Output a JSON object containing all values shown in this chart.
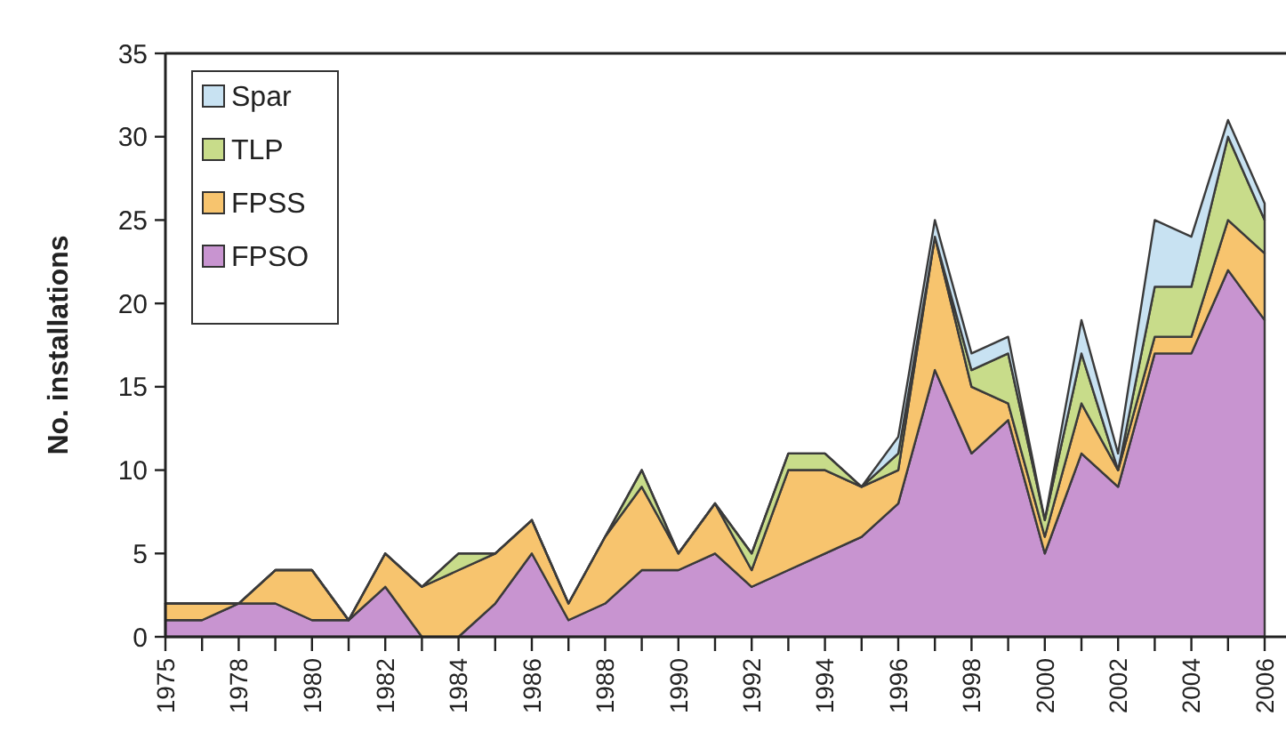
{
  "chart_data": {
    "type": "area",
    "stacked": true,
    "ylabel": "No. installations",
    "categories": [
      "1975",
      null,
      "1978",
      null,
      "1980",
      null,
      "1982",
      null,
      "1984",
      null,
      "1986",
      null,
      "1988",
      null,
      "1990",
      null,
      "1992",
      null,
      "1994",
      null,
      "1996",
      null,
      "1998",
      null,
      "2000",
      null,
      "2002",
      null,
      "2004",
      null,
      "2006"
    ],
    "series": [
      {
        "name": "FPSO",
        "color": "#c894d0",
        "values": [
          1,
          1,
          2,
          2,
          1,
          1,
          3,
          0,
          0,
          2,
          5,
          1,
          2,
          4,
          4,
          5,
          3,
          4,
          5,
          6,
          8,
          16,
          11,
          13,
          5,
          11,
          9,
          17,
          17,
          22,
          19
        ]
      },
      {
        "name": "FPSS",
        "color": "#f7c46e",
        "values": [
          1,
          1,
          0,
          2,
          3,
          0,
          2,
          3,
          4,
          3,
          2,
          1,
          4,
          5,
          1,
          3,
          1,
          6,
          5,
          3,
          2,
          8,
          4,
          1,
          1,
          3,
          1,
          1,
          1,
          3,
          4
        ]
      },
      {
        "name": "TLP",
        "color": "#c8dc8a",
        "values": [
          0,
          0,
          0,
          0,
          0,
          0,
          0,
          0,
          1,
          0,
          0,
          0,
          0,
          1,
          0,
          0,
          1,
          1,
          1,
          0,
          1,
          0,
          1,
          3,
          1,
          3,
          0,
          3,
          3,
          5,
          2
        ]
      },
      {
        "name": "Spar",
        "color": "#c8e2f2",
        "values": [
          0,
          0,
          0,
          0,
          0,
          0,
          0,
          0,
          0,
          0,
          0,
          0,
          0,
          0,
          0,
          0,
          0,
          0,
          0,
          0,
          1,
          1,
          1,
          1,
          0,
          2,
          1,
          4,
          3,
          1,
          1
        ]
      }
    ],
    "ylim": [
      0,
      35
    ],
    "yticks": [
      0,
      5,
      10,
      15,
      20,
      25,
      30,
      35
    ],
    "legend": "top left"
  }
}
